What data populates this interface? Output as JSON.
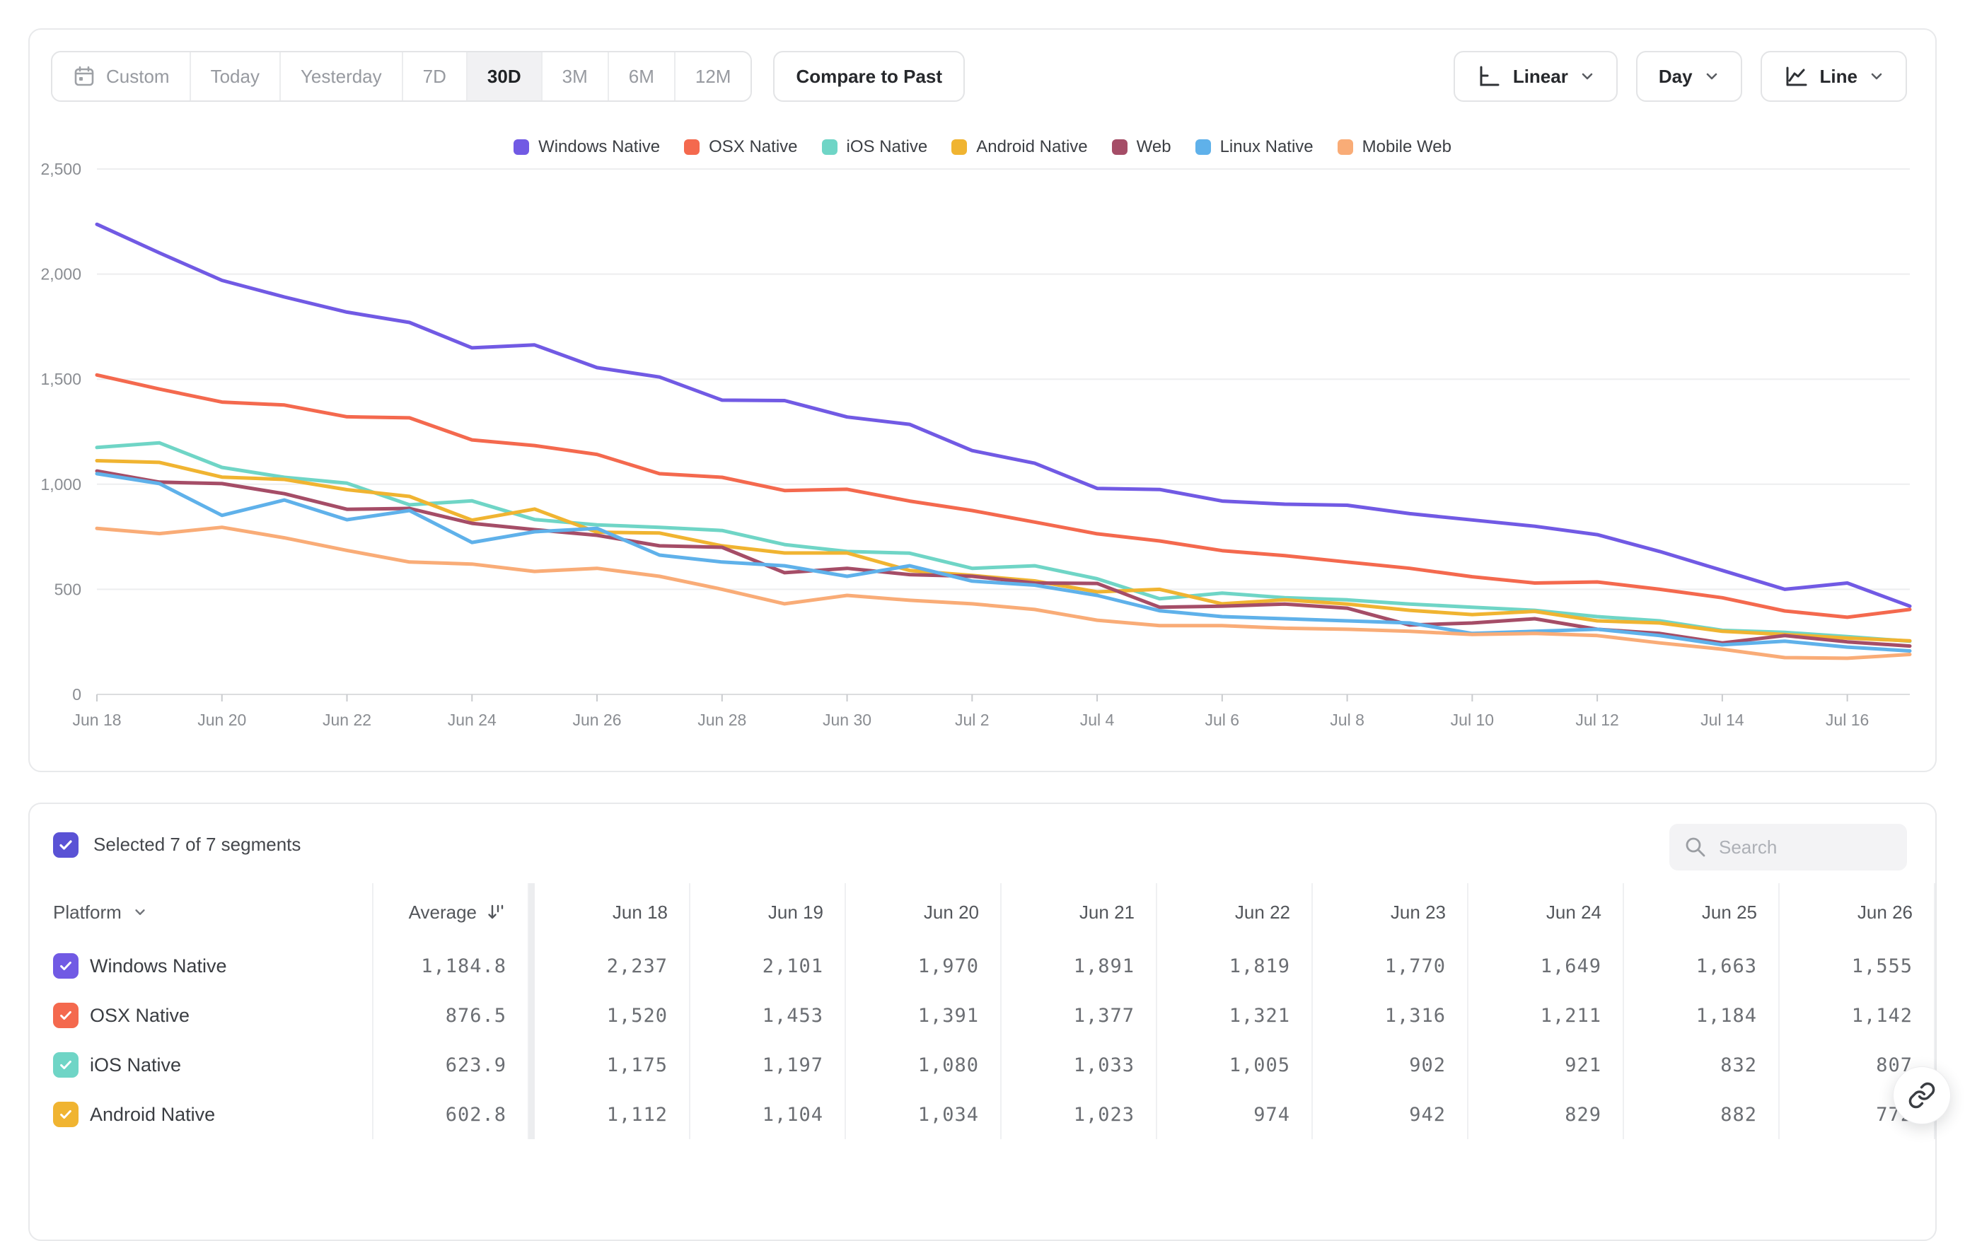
{
  "toolbar": {
    "ranges": [
      "Custom",
      "Today",
      "Yesterday",
      "7D",
      "30D",
      "3M",
      "6M",
      "12M"
    ],
    "selected_range": "30D",
    "compare_label": "Compare to Past",
    "scale_label": "Linear",
    "interval_label": "Day",
    "chart_type_label": "Line"
  },
  "chart_data": {
    "type": "line",
    "title": "",
    "xlabel": "",
    "ylabel": "",
    "ylim": [
      0,
      2500
    ],
    "grid": true,
    "legend_position": "top",
    "y_ticks": [
      "0",
      "500",
      "1,000",
      "1,500",
      "2,000",
      "2,500"
    ],
    "x": [
      "Jun 18",
      "Jun 19",
      "Jun 20",
      "Jun 21",
      "Jun 22",
      "Jun 23",
      "Jun 24",
      "Jun 25",
      "Jun 26",
      "Jun 27",
      "Jun 28",
      "Jun 29",
      "Jun 30",
      "Jul 1",
      "Jul 2",
      "Jul 3",
      "Jul 4",
      "Jul 5",
      "Jul 6",
      "Jul 7",
      "Jul 8",
      "Jul 9",
      "Jul 10",
      "Jul 11",
      "Jul 12",
      "Jul 13",
      "Jul 14",
      "Jul 15",
      "Jul 16",
      "Jul 17"
    ],
    "series": [
      {
        "name": "Windows Native",
        "color": "#715AE4",
        "values": [
          2237,
          2101,
          1970,
          1891,
          1819,
          1770,
          1649,
          1663,
          1555,
          1510,
          1400,
          1398,
          1320,
          1285,
          1160,
          1100,
          980,
          975,
          920,
          905,
          900,
          860,
          830,
          800,
          760,
          680,
          590,
          500,
          530,
          420
        ]
      },
      {
        "name": "OSX Native",
        "color": "#F4694E",
        "values": [
          1520,
          1453,
          1391,
          1377,
          1321,
          1316,
          1211,
          1184,
          1142,
          1050,
          1033,
          970,
          976,
          920,
          875,
          820,
          764,
          730,
          684,
          660,
          630,
          600,
          560,
          530,
          535,
          500,
          460,
          397,
          367,
          404
        ]
      },
      {
        "name": "iOS Native",
        "color": "#6FD5C6",
        "values": [
          1175,
          1197,
          1080,
          1033,
          1005,
          902,
          921,
          832,
          807,
          795,
          780,
          713,
          680,
          672,
          600,
          612,
          550,
          455,
          482,
          460,
          450,
          430,
          415,
          400,
          370,
          350,
          305,
          295,
          275,
          253
        ]
      },
      {
        "name": "Android Native",
        "color": "#F0B431",
        "values": [
          1112,
          1104,
          1034,
          1023,
          974,
          942,
          829,
          882,
          772,
          768,
          707,
          673,
          673,
          590,
          566,
          540,
          488,
          500,
          431,
          450,
          430,
          400,
          380,
          395,
          350,
          340,
          300,
          285,
          268,
          255
        ]
      },
      {
        "name": "Web",
        "color": "#A54D67",
        "values": [
          1063,
          1010,
          1003,
          955,
          881,
          885,
          814,
          784,
          757,
          707,
          700,
          579,
          600,
          570,
          562,
          530,
          528,
          415,
          420,
          430,
          410,
          330,
          340,
          360,
          310,
          290,
          245,
          280,
          250,
          230
        ]
      },
      {
        "name": "Linux Native",
        "color": "#5FB1EA",
        "values": [
          1050,
          1003,
          852,
          925,
          831,
          875,
          723,
          774,
          790,
          663,
          630,
          612,
          562,
          612,
          539,
          520,
          471,
          398,
          370,
          360,
          350,
          340,
          290,
          300,
          310,
          280,
          236,
          253,
          225,
          207
        ]
      },
      {
        "name": "Mobile Web",
        "color": "#F9AC77",
        "values": [
          790,
          765,
          795,
          745,
          685,
          630,
          620,
          585,
          600,
          562,
          500,
          431,
          471,
          448,
          431,
          404,
          353,
          327,
          327,
          315,
          310,
          300,
          285,
          290,
          280,
          245,
          215,
          175,
          172,
          190
        ]
      }
    ]
  },
  "segments_bar": {
    "label": "Selected 7 of 7 segments",
    "checkbox_color": "#5A52D5",
    "search_placeholder": "Search"
  },
  "table": {
    "platform_header": "Platform",
    "average_header": "Average",
    "day_headers": [
      "Jun 18",
      "Jun 19",
      "Jun 20",
      "Jun 21",
      "Jun 22",
      "Jun 23",
      "Jun 24",
      "Jun 25",
      "Jun 26"
    ],
    "rows": [
      {
        "name": "Windows Native",
        "color": "#715AE4",
        "average": "1,184.8",
        "values": [
          "2,237",
          "2,101",
          "1,970",
          "1,891",
          "1,819",
          "1,770",
          "1,649",
          "1,663",
          "1,555"
        ]
      },
      {
        "name": "OSX Native",
        "color": "#F4694E",
        "average": "876.5",
        "values": [
          "1,520",
          "1,453",
          "1,391",
          "1,377",
          "1,321",
          "1,316",
          "1,211",
          "1,184",
          "1,142"
        ]
      },
      {
        "name": "iOS Native",
        "color": "#6FD5C6",
        "average": "623.9",
        "values": [
          "1,175",
          "1,197",
          "1,080",
          "1,033",
          "1,005",
          "902",
          "921",
          "832",
          "807"
        ]
      },
      {
        "name": "Android Native",
        "color": "#F0B431",
        "average": "602.8",
        "values": [
          "1,112",
          "1,104",
          "1,034",
          "1,023",
          "974",
          "942",
          "829",
          "882",
          "772"
        ]
      }
    ]
  }
}
